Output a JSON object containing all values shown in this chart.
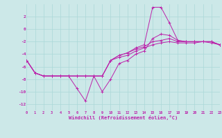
{
  "xlabel": "Windchill (Refroidissement éolien,°C)",
  "background_color": "#cce8e8",
  "grid_color": "#aad8d8",
  "line_color": "#bb22aa",
  "xlim": [
    0,
    23
  ],
  "ylim": [
    -13,
    4
  ],
  "xticks": [
    0,
    1,
    2,
    3,
    4,
    5,
    6,
    7,
    8,
    9,
    10,
    11,
    12,
    13,
    14,
    15,
    16,
    17,
    18,
    19,
    20,
    21,
    22,
    23
  ],
  "yticks": [
    -12,
    -10,
    -8,
    -6,
    -4,
    -2,
    0,
    2
  ],
  "curves": [
    {
      "x": [
        0,
        1,
        2,
        3,
        4,
        5,
        6,
        7,
        8,
        9,
        10,
        11,
        12,
        13,
        14,
        15,
        16,
        17,
        18,
        19,
        20,
        21,
        22,
        23
      ],
      "y": [
        -5,
        -7,
        -7.5,
        -7.5,
        -7.5,
        -7.5,
        -7.5,
        -7.5,
        -7.5,
        -7.5,
        -5,
        -4.5,
        -4.2,
        -3.5,
        -3.0,
        -2.5,
        -2.2,
        -2.0,
        -2.2,
        -2.2,
        -2.2,
        -2.0,
        -2.2,
        -2.5
      ]
    },
    {
      "x": [
        0,
        1,
        2,
        3,
        4,
        5,
        6,
        7,
        8,
        9,
        10,
        11,
        12,
        13,
        14,
        15,
        16,
        17,
        18,
        19,
        20,
        21,
        22,
        23
      ],
      "y": [
        -5,
        -7,
        -7.5,
        -7.5,
        -7.5,
        -7.5,
        -7.5,
        -7.5,
        -7.5,
        -7.5,
        -5,
        -4.2,
        -3.8,
        -3.2,
        -2.8,
        -2.0,
        -1.8,
        -1.5,
        -2.0,
        -2.0,
        -2.0,
        -2.0,
        -2.0,
        -2.5
      ]
    },
    {
      "x": [
        0,
        1,
        2,
        3,
        4,
        5,
        6,
        7,
        8,
        9,
        10,
        11,
        12,
        13,
        14,
        15,
        16,
        17,
        18,
        19,
        20,
        21,
        22,
        23
      ],
      "y": [
        -5,
        -7,
        -7.5,
        -7.5,
        -7.5,
        -7.5,
        -9.5,
        -11.5,
        -7.5,
        -10.0,
        -8.0,
        -5.5,
        -5.0,
        -4.0,
        -3.5,
        -1.5,
        -0.8,
        -1.0,
        -1.8,
        -2.0,
        -2.0,
        -2.0,
        -2.0,
        -2.5
      ]
    },
    {
      "x": [
        0,
        1,
        2,
        3,
        4,
        5,
        6,
        7,
        8,
        9,
        10,
        11,
        12,
        13,
        14,
        15,
        16,
        17,
        18,
        19,
        20,
        21,
        22,
        23
      ],
      "y": [
        -5,
        -7,
        -7.5,
        -7.5,
        -7.5,
        -7.5,
        -7.5,
        -7.5,
        -7.5,
        -7.5,
        -5,
        -4.2,
        -3.8,
        -3.0,
        -2.5,
        3.5,
        3.5,
        1.0,
        -1.8,
        -2.0,
        -2.0,
        -2.0,
        -2.0,
        -2.5
      ]
    }
  ]
}
